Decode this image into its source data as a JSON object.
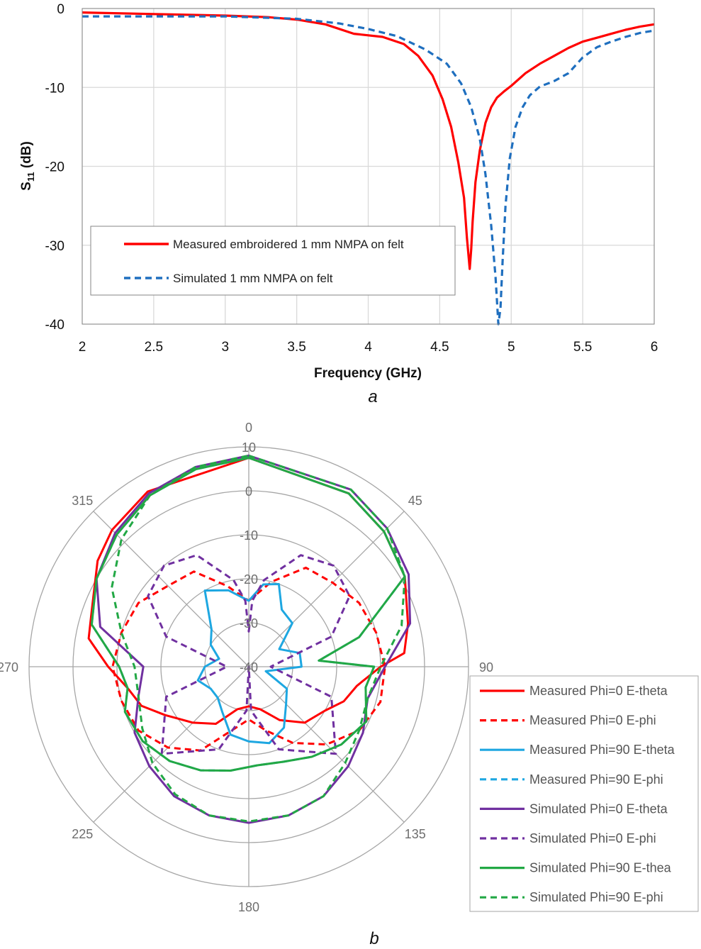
{
  "chart_data": [
    {
      "type": "line",
      "panel_label": "a",
      "xlabel": "Frequency (GHz)",
      "ylabel_main": "S",
      "ylabel_sub": "11",
      "ylabel_unit": " (dB)",
      "xlim": [
        2,
        6
      ],
      "ylim": [
        -40,
        0
      ],
      "x_ticks": [
        2,
        2.5,
        3,
        3.5,
        4,
        4.5,
        5,
        5.5,
        6
      ],
      "y_ticks": [
        0,
        -10,
        -20,
        -30,
        -40
      ],
      "grid": true,
      "legend_position": "lower-left",
      "series": [
        {
          "name": "Measured embroidered 1 mm NMPA on felt",
          "color": "#ff0000",
          "style": "solid",
          "x": [
            2.0,
            2.5,
            3.0,
            3.3,
            3.5,
            3.7,
            3.9,
            4.1,
            4.25,
            4.35,
            4.45,
            4.52,
            4.58,
            4.63,
            4.67,
            4.69,
            4.71,
            4.72,
            4.73,
            4.75,
            4.78,
            4.82,
            4.86,
            4.9,
            4.95,
            5.0,
            5.1,
            5.2,
            5.3,
            5.4,
            5.5,
            5.6,
            5.7,
            5.8,
            5.9,
            6.0
          ],
          "y": [
            -0.5,
            -0.7,
            -0.9,
            -1.1,
            -1.4,
            -2.0,
            -3.2,
            -3.6,
            -4.5,
            -6.0,
            -8.5,
            -11.5,
            -15.0,
            -19.5,
            -24.0,
            -29.0,
            -33.0,
            -30.5,
            -27.0,
            -22.0,
            -18.0,
            -14.5,
            -12.5,
            -11.3,
            -10.5,
            -9.8,
            -8.2,
            -7.0,
            -6.0,
            -5.0,
            -4.2,
            -3.7,
            -3.2,
            -2.7,
            -2.3,
            -2.0
          ]
        },
        {
          "name": "Simulated 1 mm NMPA on felt",
          "color": "#1f6fbf",
          "style": "dashed",
          "x": [
            2.0,
            2.5,
            3.0,
            3.5,
            3.8,
            4.0,
            4.2,
            4.4,
            4.55,
            4.65,
            4.72,
            4.78,
            4.82,
            4.86,
            4.89,
            4.91,
            4.925,
            4.94,
            4.96,
            4.99,
            5.03,
            5.08,
            5.13,
            5.2,
            5.3,
            5.4,
            5.5,
            5.6,
            5.7,
            5.8,
            5.9,
            6.0
          ],
          "y": [
            -1.0,
            -1.0,
            -1.0,
            -1.3,
            -1.9,
            -2.6,
            -3.5,
            -5.2,
            -7.0,
            -9.5,
            -12.5,
            -16.5,
            -21.0,
            -27.5,
            -34.0,
            -40.0,
            -38.0,
            -32.0,
            -25.0,
            -19.0,
            -15.0,
            -12.5,
            -11.0,
            -9.9,
            -9.2,
            -8.2,
            -6.2,
            -4.9,
            -4.2,
            -3.6,
            -3.1,
            -2.8
          ]
        }
      ]
    },
    {
      "type": "polar",
      "panel_label": "b",
      "r_ticks": [
        -40,
        -30,
        -20,
        -10,
        0,
        10
      ],
      "r_tick_labels": [
        "-40",
        "-30",
        "-20",
        "-10",
        "0",
        "10"
      ],
      "rlim": [
        -40,
        10
      ],
      "angle_ticks": [
        0,
        45,
        90,
        135,
        180,
        225,
        270,
        315
      ],
      "angle_direction": "clockwise",
      "angle_zero": "top",
      "legend_position": "right",
      "series": [
        {
          "name": "Measured Phi=0 E-theta",
          "color": "#ff0000",
          "style": "solid",
          "theta": [
            0,
            30,
            45,
            60,
            75,
            85,
            90,
            100,
            110,
            120,
            135,
            150,
            165,
            180,
            195,
            210,
            225,
            240,
            250,
            260,
            270,
            280,
            290,
            305,
            315,
            330
          ],
          "r": [
            7.5,
            5.5,
            3.5,
            1.0,
            -2.5,
            -4.5,
            -10.0,
            -15.0,
            -17.0,
            -20.0,
            -22.0,
            -26.0,
            -30.0,
            -31.0,
            -30.0,
            -25.0,
            -22.0,
            -18.0,
            -14.0,
            -12.0,
            -8.0,
            -3.0,
            -2.0,
            2.0,
            4.0,
            6.0
          ]
        },
        {
          "name": "Measured Phi=0 E-phi",
          "color": "#ff0000",
          "style": "dashed",
          "theta": [
            0,
            15,
            30,
            45,
            60,
            75,
            90,
            105,
            120,
            135,
            150,
            165,
            180,
            195,
            210,
            225,
            240,
            255,
            270,
            285,
            300,
            315,
            330,
            345
          ],
          "r": [
            -25.0,
            -20.0,
            -14.0,
            -13.0,
            -11.0,
            -10.0,
            -9.0,
            -9.0,
            -11.0,
            -15.0,
            -20.0,
            -25.0,
            -28.0,
            -25.0,
            -18.0,
            -14.0,
            -11.0,
            -10.0,
            -9.0,
            -10.0,
            -11.0,
            -14.0,
            -15.0,
            -21.0
          ]
        },
        {
          "name": "Measured Phi=90 E-theta",
          "color": "#1ea7e1",
          "style": "solid",
          "theta": [
            0,
            10,
            20,
            30,
            45,
            60,
            75,
            90,
            105,
            120,
            135,
            150,
            165,
            180,
            195,
            210,
            225,
            240,
            255,
            270,
            285,
            300,
            315,
            330,
            345
          ],
          "r": [
            -25.0,
            -21.0,
            -20.0,
            -25.0,
            -26.0,
            -32.0,
            -28.0,
            -28.0,
            -36.0,
            -30.0,
            -28.0,
            -24.0,
            -22.0,
            -23.0,
            -24.0,
            -28.0,
            -30.0,
            -30.0,
            -28.0,
            -30.0,
            -33.0,
            -30.0,
            -28.0,
            -20.0,
            -22.0
          ]
        },
        {
          "name": "Measured Phi=90 E-phi",
          "color": "#1ea7e1",
          "style": "dashed",
          "theta": [
            0,
            30,
            45,
            60,
            75,
            85,
            90,
            100,
            115,
            130,
            145,
            160,
            175,
            190,
            205,
            220,
            235,
            250,
            260,
            270,
            285,
            300,
            315,
            330,
            345
          ],
          "r": [
            7.5,
            5.5,
            3.5,
            1.0,
            -14.0,
            -24.0,
            -11.5,
            -13.0,
            -10.5,
            -12.5,
            -15.0,
            -17.0,
            -17.5,
            -16.0,
            -14.0,
            -12.0,
            -10.5,
            -10.0,
            -12.0,
            -10.5,
            -3.0,
            0.0,
            2.5,
            5.0,
            6.5
          ]
        },
        {
          "name": "Simulated Phi=0 E-theta",
          "color": "#7030a0",
          "style": "solid",
          "theta": [
            0,
            30,
            45,
            60,
            75,
            90,
            105,
            120,
            135,
            150,
            165,
            180,
            195,
            210,
            225,
            240,
            255,
            270,
            285,
            300,
            315,
            330,
            345
          ],
          "r": [
            8.0,
            6.5,
            4.5,
            2.0,
            -2.0,
            -9.0,
            -12.0,
            -10.0,
            -8.0,
            -6.0,
            -5.0,
            -4.5,
            -5.0,
            -6.0,
            -8.0,
            -10.0,
            -14.0,
            -16.0,
            -5.0,
            0.0,
            3.0,
            5.5,
            7.0
          ]
        },
        {
          "name": "Simulated Phi=0 E-phi",
          "color": "#7030a0",
          "style": "dashed",
          "theta": [
            0,
            3,
            10,
            25,
            40,
            55,
            70,
            90,
            110,
            135,
            160,
            177,
            180,
            183,
            200,
            225,
            250,
            270,
            290,
            305,
            320,
            335,
            350,
            357
          ],
          "r": [
            -32.0,
            -25.0,
            -20.0,
            -12.0,
            -10.0,
            -12.0,
            -20.0,
            -35.0,
            -20.0,
            -12.0,
            -20.0,
            -30.0,
            -40.0,
            -30.0,
            -20.0,
            -12.0,
            -20.0,
            -35.0,
            -20.0,
            -12.0,
            -10.0,
            -12.0,
            -20.0,
            -25.0
          ]
        },
        {
          "name": "Simulated Phi=90 E-thea",
          "color": "#22a845",
          "style": "solid",
          "theta": [
            0,
            30,
            45,
            60,
            75,
            85,
            90,
            100,
            115,
            130,
            145,
            160,
            175,
            190,
            205,
            220,
            235,
            250,
            260,
            270,
            285,
            300,
            315,
            330,
            345
          ],
          "r": [
            7.5,
            5.5,
            3.5,
            1.0,
            -14.0,
            -24.0,
            -11.5,
            -13.0,
            -10.5,
            -12.5,
            -15.0,
            -17.0,
            -17.5,
            -16.0,
            -14.0,
            -12.0,
            -10.5,
            -10.0,
            -12.0,
            -10.5,
            -3.0,
            0.0,
            2.5,
            5.0,
            6.5
          ]
        },
        {
          "name": "Simulated Phi=90 E-phi",
          "color": "#22a845",
          "style": "dashed",
          "theta": [
            0,
            30,
            45,
            60,
            75,
            90,
            105,
            120,
            135,
            150,
            165,
            180,
            195,
            210,
            225,
            240,
            255,
            270,
            285,
            300,
            315,
            330,
            345
          ],
          "r": [
            8.0,
            6.5,
            4.5,
            1.0,
            -4.0,
            -10.0,
            -12.0,
            -11.0,
            -9.0,
            -6.0,
            -5.0,
            -4.8,
            -5.0,
            -6.5,
            -9.0,
            -12.0,
            -14.0,
            -14.0,
            -10.0,
            -4.0,
            1.0,
            5.0,
            7.0
          ]
        }
      ]
    }
  ]
}
